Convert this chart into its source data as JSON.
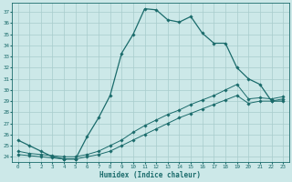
{
  "xlabel": "Humidex (Indice chaleur)",
  "bg_color": "#cce8e8",
  "line_color": "#1a6b6b",
  "grid_color": "#a8cccc",
  "x_ticks": [
    0,
    1,
    2,
    3,
    4,
    5,
    6,
    7,
    8,
    9,
    10,
    11,
    12,
    13,
    14,
    15,
    16,
    17,
    18,
    19,
    20,
    21,
    22,
    23
  ],
  "y_ticks": [
    24,
    25,
    26,
    27,
    28,
    29,
    30,
    31,
    32,
    33,
    34,
    35,
    36,
    37
  ],
  "ylim": [
    23.5,
    37.8
  ],
  "xlim": [
    -0.5,
    23.5
  ],
  "curve1_x": [
    0,
    1,
    2,
    3,
    4,
    5,
    6,
    7,
    8,
    9,
    10,
    11,
    12,
    13,
    14,
    15,
    16,
    17,
    18,
    19,
    20,
    21,
    22,
    23
  ],
  "curve1_y": [
    25.5,
    25.0,
    24.5,
    24.0,
    23.8,
    23.8,
    25.8,
    27.5,
    29.5,
    33.3,
    35.0,
    37.3,
    37.2,
    36.3,
    36.1,
    36.6,
    35.1,
    34.2,
    34.2,
    32.0,
    31.0,
    30.5,
    29.0,
    29.0
  ],
  "curve2_x": [
    0,
    1,
    2,
    3,
    4,
    5,
    6,
    7,
    8,
    9,
    10,
    11,
    12,
    13,
    14,
    15,
    16,
    17,
    18,
    19,
    20,
    21,
    22,
    23
  ],
  "curve2_y": [
    24.5,
    24.3,
    24.2,
    24.1,
    24.0,
    24.0,
    24.2,
    24.5,
    25.0,
    25.5,
    26.2,
    26.8,
    27.3,
    27.8,
    28.2,
    28.7,
    29.1,
    29.5,
    30.0,
    30.5,
    29.2,
    29.3,
    29.2,
    29.4
  ],
  "curve3_x": [
    0,
    1,
    2,
    3,
    4,
    5,
    6,
    7,
    8,
    9,
    10,
    11,
    12,
    13,
    14,
    15,
    16,
    17,
    18,
    19,
    20,
    21,
    22,
    23
  ],
  "curve3_y": [
    24.2,
    24.1,
    24.0,
    23.9,
    23.8,
    23.8,
    24.0,
    24.2,
    24.5,
    25.0,
    25.5,
    26.0,
    26.5,
    27.0,
    27.5,
    27.9,
    28.3,
    28.7,
    29.1,
    29.5,
    28.8,
    29.0,
    29.0,
    29.2
  ]
}
